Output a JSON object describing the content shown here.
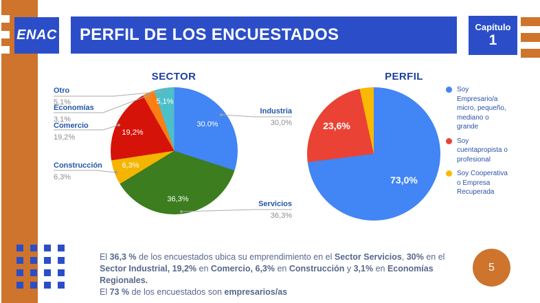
{
  "brand": {
    "logo": "ENAC",
    "chapter_label": "Capítulo",
    "chapter_number": "1",
    "page_number": "5"
  },
  "header": {
    "title": "PERFIL DE LOS ENCUESTADOS"
  },
  "colors": {
    "accent_orange": "#CE742C",
    "brand_blue": "#2B4EC8",
    "title_navy": "#1E3F9E",
    "label_navy": "#2456A9",
    "value_gray": "#8C8C8C",
    "body_text": "#56688C"
  },
  "chart_data": [
    {
      "type": "pie",
      "title": "SECTOR",
      "labels_layout": "callouts",
      "slices": [
        {
          "label": "Industria",
          "value": 30.0,
          "display": "30,0%",
          "inner": "30.0%",
          "color": "#4285F4"
        },
        {
          "label": "Servicios",
          "value": 36.3,
          "display": "36,3%",
          "inner": "36,3%",
          "color": "#3B7D1F"
        },
        {
          "label": "Construcción",
          "value": 6.3,
          "display": "6,3%",
          "inner": "6,3%",
          "color": "#F4B400"
        },
        {
          "label": "Comercio",
          "value": 19.2,
          "display": "19,2%",
          "inner": "19,2%",
          "color": "#D51308"
        },
        {
          "label": "Economías",
          "value": 3.1,
          "display": "3,1%",
          "inner": "",
          "color": "#FB7E14"
        },
        {
          "label": "Otro",
          "value": 5.1,
          "display": "5,1%",
          "inner": "5,1%",
          "color": "#4DBFC9"
        }
      ]
    },
    {
      "type": "pie",
      "title": "PERFIL",
      "legend_position": "right",
      "slices": [
        {
          "label": "Soy Empresario/a micro, pequeño, mediano o grande",
          "legend_text": "Soy\nEmpresario/a\nmicro, pequeño,\nmediano o\ngrande",
          "value": 73.0,
          "inner": "73,0%",
          "color": "#4285F4"
        },
        {
          "label": "Soy cuentapropista o profesional",
          "legend_text": "Soy\ncuentapropista o\nprofesional",
          "value": 23.6,
          "inner": "23,6%",
          "color": "#EA4335"
        },
        {
          "label": "Soy Cooperativa o Empresa Recuperada",
          "legend_text": "Soy Cooperativa\no Empresa\nRecuperada",
          "value": 3.4,
          "inner": "",
          "color": "#F9B903"
        }
      ]
    }
  ],
  "footer": {
    "paragraphs": [
      [
        {
          "t": "El ",
          "b": false
        },
        {
          "t": "36,3 %",
          "b": true
        },
        {
          "t": " de los encuestados ubica su emprendimiento en el ",
          "b": false
        },
        {
          "t": "Sector Servicios",
          "b": true
        },
        {
          "t": ", ",
          "b": false
        },
        {
          "t": "30%",
          "b": true
        },
        {
          "t": " en el ",
          "b": false
        },
        {
          "t": "Sector Industrial, 19,2%",
          "b": true
        },
        {
          "t": " en ",
          "b": false
        },
        {
          "t": "Comercio, 6,3%",
          "b": true
        },
        {
          "t": " en ",
          "b": false
        },
        {
          "t": "Construcción",
          "b": true
        },
        {
          "t": " y ",
          "b": false
        },
        {
          "t": "3,1%",
          "b": true
        },
        {
          "t": " en ",
          "b": false
        },
        {
          "t": "Economías Regionales.",
          "b": true
        }
      ],
      [
        {
          "t": "El ",
          "b": false
        },
        {
          "t": "73 %",
          "b": true
        },
        {
          "t": " de los encuestados son ",
          "b": false
        },
        {
          "t": "empresarios/as",
          "b": true
        }
      ]
    ]
  }
}
